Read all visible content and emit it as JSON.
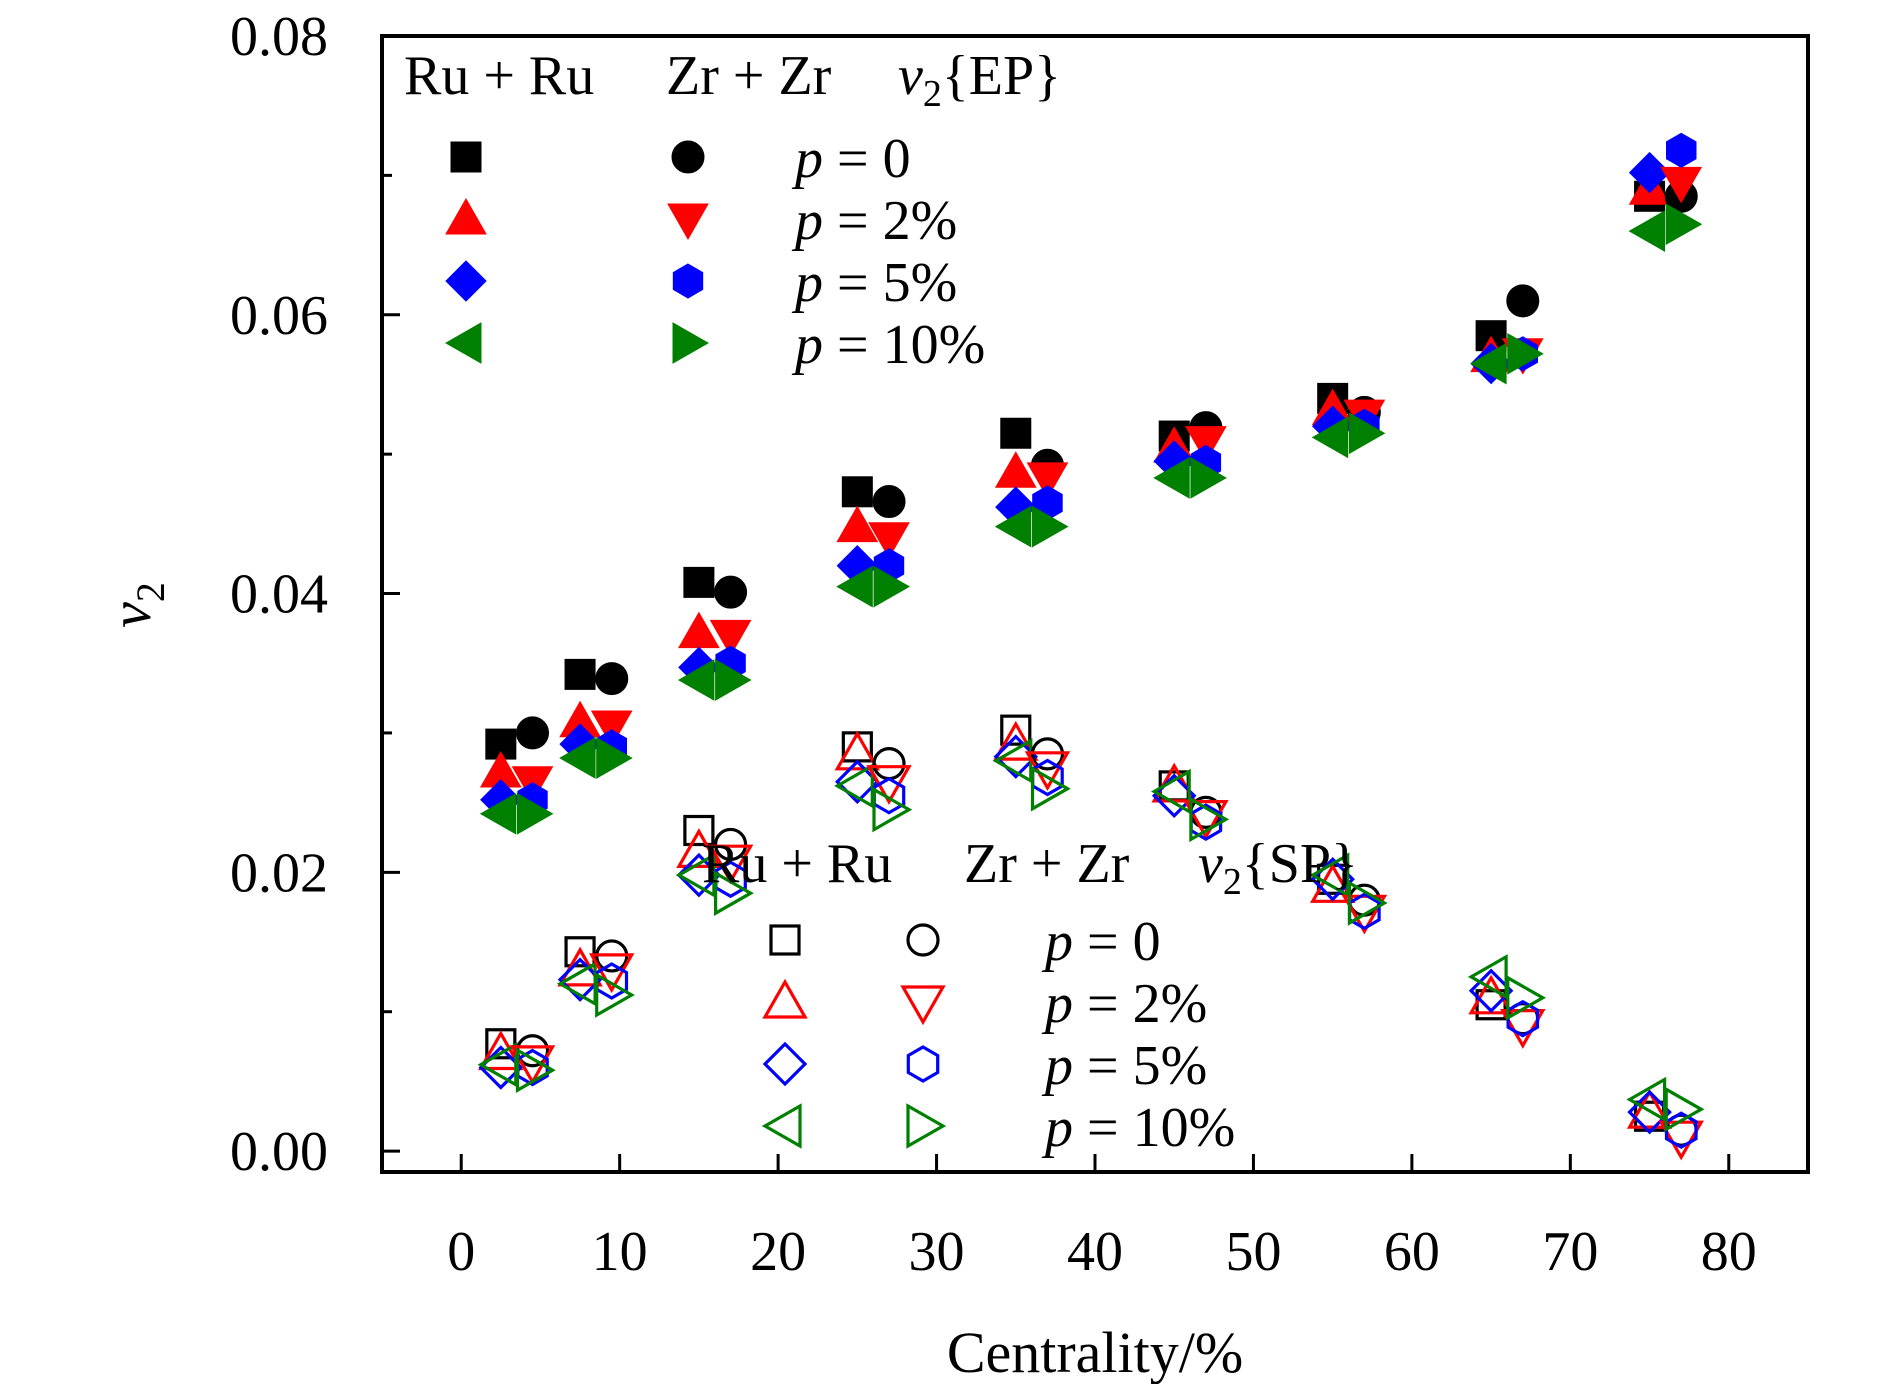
{
  "chart_data": {
    "type": "scatter",
    "xlabel": "Centrality/%",
    "ylabel": "v",
    "ylabel_sub": "2",
    "xlim": [
      -5,
      85
    ],
    "ylim": [
      -0.0015,
      0.08
    ],
    "x_ticks": [
      0,
      10,
      20,
      30,
      40,
      50,
      60,
      70,
      80
    ],
    "x_tick_labels": [
      "0",
      "10",
      "20",
      "30",
      "40",
      "50",
      "60",
      "70",
      "80"
    ],
    "y_ticks": [
      0.0,
      0.02,
      0.04,
      0.06,
      0.08
    ],
    "y_tick_labels": [
      "0.00",
      "0.02",
      "0.04",
      "0.06",
      "0.08"
    ],
    "grid": false,
    "legends": [
      {
        "placement": "top-left",
        "col1_label": "Ru + Ru",
        "col2_label": "Zr + Zr",
        "method_v": "v",
        "method_sub": "2",
        "method_text": "{EP}",
        "rows": [
          {
            "p": "p",
            "rest": " = 0"
          },
          {
            "p": "p",
            "rest": " = 2%"
          },
          {
            "p": "p",
            "rest": " = 5%"
          },
          {
            "p": "p",
            "rest": " = 10%"
          }
        ]
      },
      {
        "placement": "bottom-center",
        "col1_label": "Ru + Ru",
        "col2_label": "Zr + Zr",
        "method_v": "v",
        "method_sub": "2",
        "method_text": "{SP}",
        "rows": [
          {
            "p": "p",
            "rest": " = 0"
          },
          {
            "p": "p",
            "rest": " = 2%"
          },
          {
            "p": "p",
            "rest": " = 5%"
          },
          {
            "p": "p",
            "rest": " = 10%"
          }
        ]
      }
    ],
    "series": [
      {
        "system": "Ru+Ru",
        "method": "EP",
        "p": "0",
        "marker": "square",
        "filled": true,
        "color": "#000000",
        "x": [
          2.5,
          7.5,
          15,
          25,
          35,
          45,
          55,
          65,
          75
        ],
        "y": [
          0.0292,
          0.0342,
          0.0408,
          0.0473,
          0.0515,
          0.0513,
          0.054,
          0.0585,
          0.0685
        ]
      },
      {
        "system": "Ru+Ru",
        "method": "EP",
        "p": "2%",
        "marker": "triangle-up",
        "filled": true,
        "color": "#ff0000",
        "x": [
          2.5,
          7.5,
          15,
          25,
          35,
          45,
          55,
          65,
          75
        ],
        "y": [
          0.0272,
          0.0308,
          0.0372,
          0.0448,
          0.0487,
          0.0505,
          0.0532,
          0.057,
          0.069
        ]
      },
      {
        "system": "Ru+Ru",
        "method": "EP",
        "p": "5%",
        "marker": "diamond",
        "filled": true,
        "color": "#0000ff",
        "x": [
          2.5,
          7.5,
          15,
          25,
          35,
          45,
          55,
          65,
          75
        ],
        "y": [
          0.0252,
          0.0292,
          0.0347,
          0.042,
          0.0462,
          0.0495,
          0.052,
          0.0565,
          0.0702
        ]
      },
      {
        "system": "Ru+Ru",
        "method": "EP",
        "p": "10%",
        "marker": "triangle-left",
        "filled": true,
        "color": "#008000",
        "x": [
          2.5,
          7.5,
          15,
          25,
          35,
          45,
          55,
          65,
          75
        ],
        "y": [
          0.0242,
          0.0282,
          0.0338,
          0.0405,
          0.0448,
          0.0483,
          0.0512,
          0.0565,
          0.066
        ]
      },
      {
        "system": "Zr+Zr",
        "method": "EP",
        "p": "0",
        "marker": "circle",
        "filled": true,
        "color": "#000000",
        "x": [
          4.5,
          9.5,
          17,
          27,
          37,
          47,
          57,
          67,
          77
        ],
        "y": [
          0.03,
          0.0339,
          0.0401,
          0.0466,
          0.0492,
          0.0519,
          0.053,
          0.061,
          0.0685
        ]
      },
      {
        "system": "Zr+Zr",
        "method": "EP",
        "p": "2%",
        "marker": "triangle-down",
        "filled": true,
        "color": "#ff0000",
        "x": [
          4.5,
          9.5,
          17,
          27,
          37,
          47,
          57,
          67,
          77
        ],
        "y": [
          0.0265,
          0.0305,
          0.037,
          0.044,
          0.0483,
          0.0509,
          0.0528,
          0.0572,
          0.0695
        ]
      },
      {
        "system": "Zr+Zr",
        "method": "EP",
        "p": "5%",
        "marker": "hexagon",
        "filled": true,
        "color": "#0000ff",
        "x": [
          4.5,
          9.5,
          17,
          27,
          37,
          47,
          57,
          67,
          77
        ],
        "y": [
          0.0252,
          0.029,
          0.035,
          0.042,
          0.0465,
          0.0494,
          0.052,
          0.0572,
          0.0718
        ]
      },
      {
        "system": "Zr+Zr",
        "method": "EP",
        "p": "10%",
        "marker": "triangle-right",
        "filled": true,
        "color": "#008000",
        "x": [
          4.5,
          9.5,
          17,
          27,
          37,
          47,
          57,
          67,
          77
        ],
        "y": [
          0.0242,
          0.0282,
          0.0338,
          0.0405,
          0.0448,
          0.0483,
          0.0515,
          0.0572,
          0.0665
        ]
      },
      {
        "system": "Ru+Ru",
        "method": "SP",
        "p": "0",
        "marker": "square",
        "filled": false,
        "color": "#000000",
        "x": [
          2.5,
          7.5,
          15,
          25,
          35,
          45,
          55,
          65,
          75
        ],
        "y": [
          0.0077,
          0.0143,
          0.023,
          0.029,
          0.0302,
          0.0262,
          0.0195,
          0.0105,
          0.0025
        ]
      },
      {
        "system": "Ru+Ru",
        "method": "SP",
        "p": "2%",
        "marker": "triangle-up",
        "filled": false,
        "color": "#ff0000",
        "x": [
          2.5,
          7.5,
          15,
          25,
          35,
          45,
          55,
          65,
          75
        ],
        "y": [
          0.007,
          0.013,
          0.0215,
          0.0285,
          0.0292,
          0.0262,
          0.019,
          0.011,
          0.0028
        ]
      },
      {
        "system": "Ru+Ru",
        "method": "SP",
        "p": "5%",
        "marker": "diamond",
        "filled": false,
        "color": "#0000ff",
        "x": [
          2.5,
          7.5,
          15,
          25,
          35,
          45,
          55,
          65,
          75
        ],
        "y": [
          0.006,
          0.0123,
          0.0198,
          0.0265,
          0.0283,
          0.0255,
          0.0195,
          0.0115,
          0.0028
        ]
      },
      {
        "system": "Ru+Ru",
        "method": "SP",
        "p": "10%",
        "marker": "triangle-left",
        "filled": false,
        "color": "#008000",
        "x": [
          2.5,
          7.5,
          15,
          25,
          35,
          45,
          55,
          65,
          75
        ],
        "y": [
          0.0062,
          0.012,
          0.0198,
          0.0262,
          0.028,
          0.0258,
          0.0198,
          0.0125,
          0.0037
        ]
      },
      {
        "system": "Zr+Zr",
        "method": "SP",
        "p": "0",
        "marker": "circle",
        "filled": false,
        "color": "#000000",
        "x": [
          4.5,
          9.5,
          17,
          27,
          37,
          47,
          57,
          67,
          77
        ],
        "y": [
          0.0072,
          0.014,
          0.022,
          0.0278,
          0.0285,
          0.0243,
          0.018,
          0.0095,
          0.0015
        ]
      },
      {
        "system": "Zr+Zr",
        "method": "SP",
        "p": "2%",
        "marker": "triangle-down",
        "filled": false,
        "color": "#ff0000",
        "x": [
          4.5,
          9.5,
          17,
          27,
          37,
          47,
          57,
          67,
          77
        ],
        "y": [
          0.0064,
          0.013,
          0.0208,
          0.0265,
          0.0275,
          0.024,
          0.0172,
          0.009,
          0.001
        ]
      },
      {
        "system": "Zr+Zr",
        "method": "SP",
        "p": "5%",
        "marker": "hexagon",
        "filled": false,
        "color": "#0000ff",
        "x": [
          4.5,
          9.5,
          17,
          27,
          37,
          47,
          57,
          67,
          77
        ],
        "y": [
          0.006,
          0.0122,
          0.0195,
          0.0255,
          0.0268,
          0.0236,
          0.0172,
          0.0095,
          0.0015
        ]
      },
      {
        "system": "Zr+Zr",
        "method": "SP",
        "p": "10%",
        "marker": "triangle-right",
        "filled": false,
        "color": "#008000",
        "x": [
          4.5,
          9.5,
          17,
          27,
          37,
          47,
          57,
          67,
          77
        ],
        "y": [
          0.0058,
          0.0112,
          0.0185,
          0.0245,
          0.026,
          0.0238,
          0.0178,
          0.011,
          0.003
        ]
      }
    ]
  }
}
